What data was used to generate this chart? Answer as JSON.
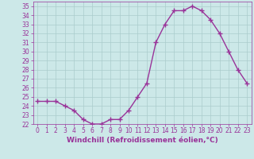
{
  "x": [
    0,
    1,
    2,
    3,
    4,
    5,
    6,
    7,
    8,
    9,
    10,
    11,
    12,
    13,
    14,
    15,
    16,
    17,
    18,
    19,
    20,
    21,
    22,
    23
  ],
  "y": [
    24.5,
    24.5,
    24.5,
    24.0,
    23.5,
    22.5,
    22.0,
    22.0,
    22.5,
    22.5,
    23.5,
    25.0,
    26.5,
    31.0,
    33.0,
    34.5,
    34.5,
    35.0,
    34.5,
    33.5,
    32.0,
    30.0,
    28.0,
    26.5
  ],
  "line_color": "#993399",
  "marker": "+",
  "marker_size": 4,
  "bg_color": "#cce8e8",
  "grid_color": "#aacccc",
  "xlabel": "Windchill (Refroidissement éolien,°C)",
  "xlabel_color": "#993399",
  "tick_color": "#993399",
  "label_color": "#993399",
  "ylim": [
    22,
    35.5
  ],
  "yticks": [
    22,
    23,
    24,
    25,
    26,
    27,
    28,
    29,
    30,
    31,
    32,
    33,
    34,
    35
  ],
  "xlim": [
    -0.5,
    23.5
  ],
  "xticks": [
    0,
    1,
    2,
    3,
    4,
    5,
    6,
    7,
    8,
    9,
    10,
    11,
    12,
    13,
    14,
    15,
    16,
    17,
    18,
    19,
    20,
    21,
    22,
    23
  ],
  "line_width": 1.0,
  "font_size": 5.5,
  "axis_label_fontsize": 6.5
}
